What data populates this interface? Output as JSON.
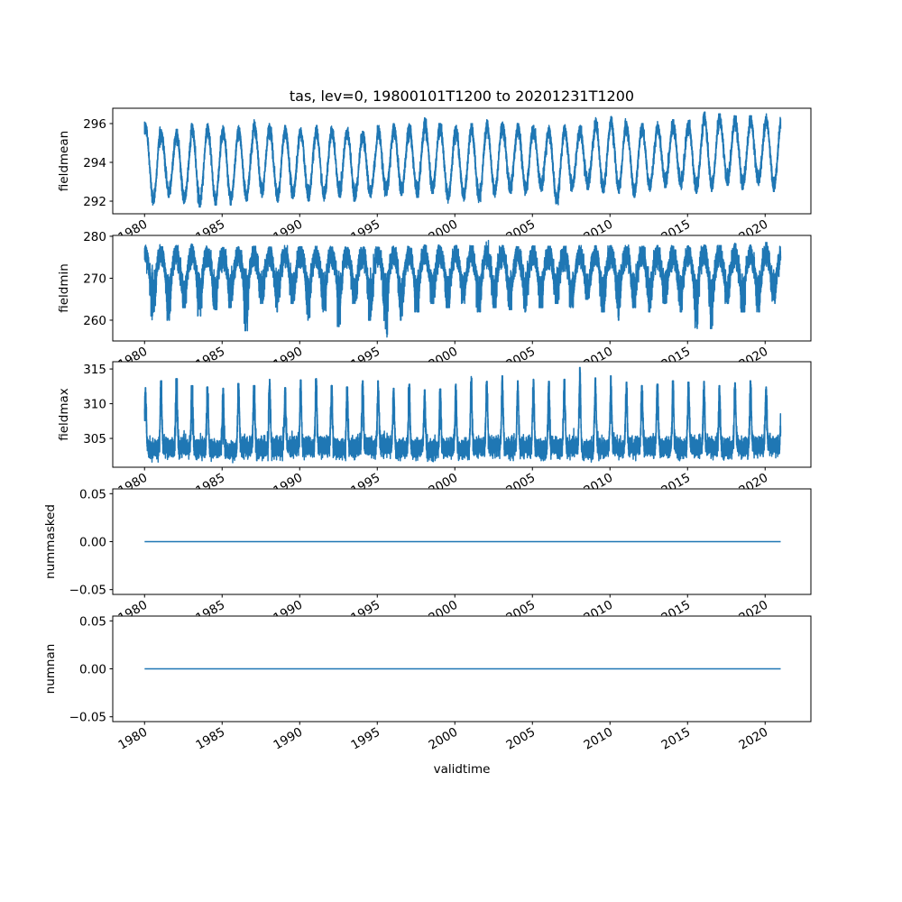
{
  "chart_data": {
    "type": "line",
    "title": "tas, lev=0, 19800101T1200 to 20201231T1200",
    "xlabel": "validtime",
    "x_range": [
      1980.0,
      2021.0
    ],
    "xlim": [
      1977.95,
      2022.95
    ],
    "x_ticks": [
      1980,
      1985,
      1990,
      1995,
      2000,
      2005,
      2010,
      2015,
      2020
    ],
    "x_tick_labels": [
      "1980",
      "1985",
      "1990",
      "1995",
      "2000",
      "2005",
      "2010",
      "2015",
      "2020"
    ],
    "line_color": "#1f77b4",
    "years": [
      1980,
      1981,
      1982,
      1983,
      1984,
      1985,
      1986,
      1987,
      1988,
      1989,
      1990,
      1991,
      1992,
      1993,
      1994,
      1995,
      1996,
      1997,
      1998,
      1999,
      2000,
      2001,
      2002,
      2003,
      2004,
      2005,
      2006,
      2007,
      2008,
      2009,
      2010,
      2011,
      2012,
      2013,
      2014,
      2015,
      2016,
      2017,
      2018,
      2019,
      2020
    ],
    "panels": [
      {
        "name": "fieldmean",
        "ylabel": "fieldmean",
        "ylim": [
          291.35,
          296.79
        ],
        "y_ticks": [
          292,
          294,
          296
        ],
        "y_tick_labels": [
          "292",
          "294",
          "296"
        ],
        "annual_max": [
          296.1,
          295.7,
          295.7,
          296.0,
          296.0,
          295.9,
          295.9,
          296.2,
          296.0,
          295.9,
          295.8,
          295.9,
          295.9,
          295.8,
          295.6,
          295.9,
          296.0,
          296.0,
          296.3,
          296.0,
          295.9,
          296.0,
          296.2,
          296.1,
          296.1,
          295.9,
          295.9,
          296.0,
          295.9,
          296.3,
          296.4,
          296.1,
          296.0,
          296.1,
          296.2,
          296.2,
          296.6,
          296.5,
          296.4,
          296.4,
          296.5
        ],
        "annual_min": [
          291.8,
          292.2,
          291.8,
          291.7,
          291.8,
          291.8,
          292.0,
          292.2,
          291.9,
          292.1,
          292.0,
          292.0,
          292.2,
          292.0,
          292.1,
          292.2,
          292.3,
          292.2,
          292.4,
          291.9,
          292.0,
          291.9,
          292.2,
          292.4,
          292.3,
          292.5,
          291.8,
          292.5,
          292.6,
          292.4,
          292.4,
          292.2,
          292.5,
          292.7,
          292.6,
          292.4,
          292.5,
          292.8,
          292.6,
          292.8,
          292.5
        ]
      },
      {
        "name": "fieldmin",
        "ylabel": "fieldmin",
        "ylim": [
          255.05,
          280.2
        ],
        "y_ticks": [
          260,
          270,
          280
        ],
        "y_tick_labels": [
          "260",
          "270",
          "280"
        ],
        "annual_max": [
          278.0,
          277.5,
          277.8,
          278.2,
          277.6,
          277.3,
          277.5,
          277.6,
          277.4,
          277.8,
          277.5,
          277.6,
          277.4,
          277.3,
          277.5,
          277.4,
          277.6,
          277.5,
          277.9,
          277.6,
          277.8,
          277.7,
          279.0,
          277.8,
          277.5,
          277.7,
          277.6,
          277.6,
          277.8,
          277.7,
          277.8,
          277.9,
          277.6,
          277.8,
          277.6,
          277.7,
          277.9,
          277.8,
          278.3,
          277.9,
          278.5
        ],
        "annual_min": [
          259.5,
          260.0,
          263.0,
          261.0,
          262.5,
          263.0,
          257.5,
          264.0,
          262.0,
          264.0,
          260.0,
          262.0,
          258.5,
          264.0,
          260.0,
          256.0,
          260.0,
          262.0,
          264.0,
          263.0,
          264.0,
          262.0,
          263.0,
          262.5,
          262.0,
          263.0,
          264.0,
          263.0,
          265.0,
          262.0,
          260.0,
          263.0,
          262.0,
          264.0,
          262.0,
          258.0,
          258.0,
          264.0,
          262.0,
          262.0,
          264.0
        ]
      },
      {
        "name": "fieldmax",
        "ylabel": "fieldmax",
        "ylim": [
          300.85,
          316.05
        ],
        "y_ticks": [
          305,
          310,
          315
        ],
        "y_tick_labels": [
          "305",
          "310",
          "315"
        ],
        "annual_max": [
          312.3,
          313.3,
          313.6,
          312.6,
          312.4,
          312.2,
          312.9,
          312.6,
          313.5,
          312.3,
          313.4,
          313.6,
          312.6,
          312.4,
          313.3,
          313.3,
          312.2,
          312.8,
          312.0,
          312.1,
          312.8,
          313.9,
          313.2,
          314.0,
          313.3,
          313.5,
          313.2,
          313.5,
          315.2,
          313.7,
          314.0,
          313.1,
          312.6,
          312.8,
          313.3,
          313.1,
          313.2,
          312.6,
          313.0,
          313.3,
          312.4
        ],
        "annual_min": [
          301.6,
          301.9,
          302.0,
          301.8,
          301.7,
          301.5,
          302.0,
          301.8,
          301.8,
          302.0,
          301.9,
          302.0,
          301.8,
          301.9,
          302.0,
          302.1,
          301.7,
          301.8,
          301.6,
          301.9,
          301.7,
          302.0,
          302.1,
          301.8,
          301.9,
          301.8,
          302.0,
          301.9,
          301.6,
          301.8,
          301.9,
          301.8,
          302.0,
          301.9,
          301.8,
          302.0,
          301.9,
          301.8,
          302.0,
          302.1,
          302.2
        ]
      },
      {
        "name": "nummasked",
        "ylabel": "nummasked",
        "ylim": [
          -0.055,
          0.055
        ],
        "y_ticks": [
          -0.05,
          0.0,
          0.05
        ],
        "y_tick_labels": [
          "−0.05",
          "0.00",
          "0.05"
        ],
        "constant_value": 0.0
      },
      {
        "name": "numnan",
        "ylabel": "numnan",
        "ylim": [
          -0.055,
          0.055
        ],
        "y_ticks": [
          -0.05,
          0.0,
          0.05
        ],
        "y_tick_labels": [
          "−0.05",
          "0.00",
          "0.05"
        ],
        "constant_value": 0.0
      }
    ]
  }
}
